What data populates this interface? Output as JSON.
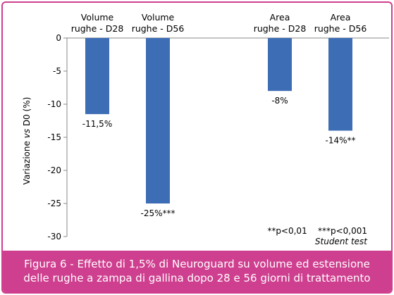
{
  "chart_data": {
    "type": "bar",
    "categories": [
      [
        "Volume",
        "rughe - D28"
      ],
      [
        "Volume",
        "rughe - D56"
      ],
      [
        "Area",
        "rughe - D28"
      ],
      [
        "Area",
        "rughe - D56"
      ]
    ],
    "values": [
      -11.5,
      -25,
      -8,
      -14
    ],
    "data_labels": [
      "-11,5%",
      "-25%***",
      "-8%",
      "-14%**"
    ],
    "ylabel_prefix": "Variazione ",
    "ylabel_italic": "vs",
    "ylabel_suffix": " D0 (%)",
    "ylim": [
      -30,
      0
    ],
    "yticks": [
      0,
      -5,
      -10,
      -15,
      -20,
      -25,
      -30
    ],
    "grid": false,
    "bar_color": "#3d6db5",
    "notes": {
      "significance": "**p<0,01    ***p<0,001",
      "test": "Student test"
    }
  },
  "caption": {
    "line1": "Figura 6 - Effetto di 1,5% di Neuroguard su volume ed estensione",
    "line2": "delle rughe a zampa di gallina dopo 28 e 56 giorni di trattamento"
  },
  "colors": {
    "accent": "#cf3f8f"
  }
}
